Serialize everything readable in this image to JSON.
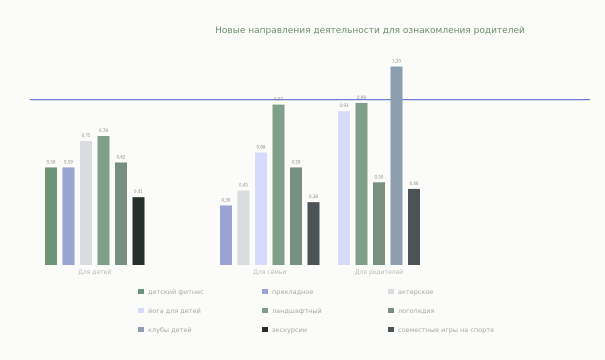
{
  "chart_data": {
    "type": "bar",
    "title": "Новые направления деятельности для ознакомления родителей",
    "groups": [
      "Для детей",
      "Для семьи",
      "Для родителей"
    ],
    "ylim": [
      0,
      1.3
    ],
    "reference_line": 1,
    "grid": false,
    "legend_position": "bottom",
    "series": [
      {
        "name": "детский фитнес",
        "color": "#6f9377",
        "values": [
          0.59,
          null,
          null
        ]
      },
      {
        "name": "прикладное",
        "color": "#9aa3d2",
        "values": [
          0.59,
          0.36,
          null
        ]
      },
      {
        "name": "актерское",
        "color": "#d9dde0",
        "values": [
          0.75,
          0.45,
          null
        ]
      },
      {
        "name": "йога для детей",
        "color": "#d7dafa",
        "values": [
          null,
          0.68,
          0.93
        ]
      },
      {
        "name": "ландшафтный",
        "color": "#7f9f8a",
        "values": [
          0.78,
          0.97,
          0.98
        ]
      },
      {
        "name": "логопедия",
        "color": "#78907f",
        "values": [
          0.62,
          0.59,
          0.5
        ]
      },
      {
        "name": "клубы детей",
        "color": "#8c9eaf",
        "values": [
          null,
          null,
          1.2
        ]
      },
      {
        "name": "экскурсии",
        "color": "#272f2c",
        "values": [
          0.41,
          null,
          null
        ]
      },
      {
        "name": "совместные игры на спорте",
        "color": "#4c5356",
        "values": [
          null,
          0.38,
          0.46
        ]
      }
    ]
  }
}
